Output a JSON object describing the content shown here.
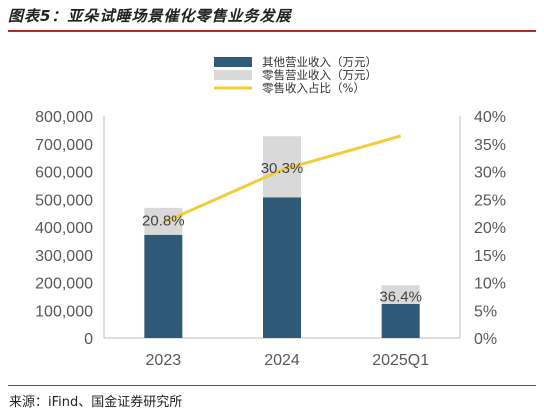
{
  "header": {
    "title": "图表5：亚朵试睡场景催化零售业务发展"
  },
  "footer": {
    "source": "来源：iFind、国金证券研究所"
  },
  "colors": {
    "other": "#2e5a78",
    "retail": "#d9d9d9",
    "share_line": "#f2cd36",
    "rule": "#b22a2a"
  },
  "chart_data": {
    "type": "bar",
    "stacked": true,
    "categories": [
      "2023",
      "2024",
      "2025Q1"
    ],
    "series": [
      {
        "name": "其他营业收入（万元）",
        "axis": "left",
        "values": [
          372000,
          507000,
          123000
        ]
      },
      {
        "name": "零售营业收入（万元）",
        "axis": "left",
        "values": [
          97000,
          220000,
          67000
        ]
      },
      {
        "name": "零售收入占比（%）",
        "type": "line",
        "axis": "right",
        "values": [
          20.8,
          30.3,
          36.4
        ]
      }
    ],
    "data_labels": [
      "20.8%",
      "30.3%",
      "36.4%"
    ],
    "ylim": [
      0,
      800000
    ],
    "y_ticks": [
      "0",
      "100,000",
      "200,000",
      "300,000",
      "400,000",
      "500,000",
      "600,000",
      "700,000",
      "800,000"
    ],
    "y2lim": [
      0,
      40
    ],
    "y2_ticks": [
      "0%",
      "5%",
      "10%",
      "15%",
      "20%",
      "25%",
      "30%",
      "35%",
      "40%"
    ],
    "legend_position": "top",
    "grid": false
  }
}
